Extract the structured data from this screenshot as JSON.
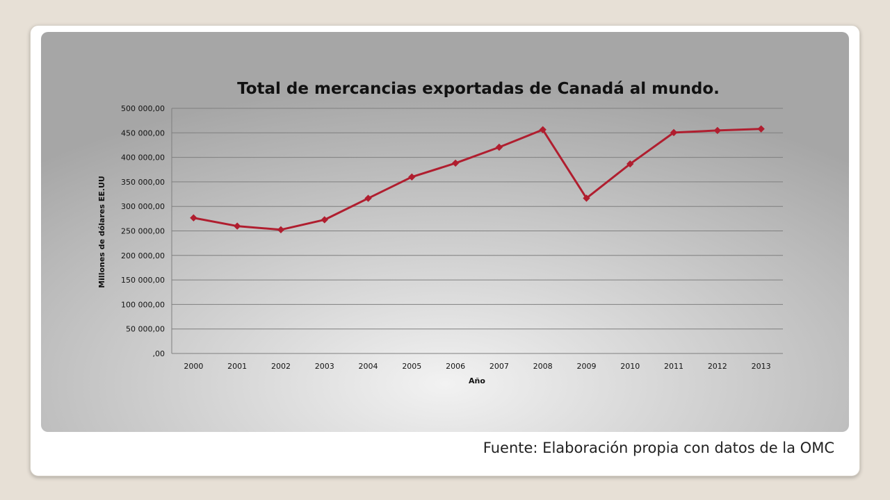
{
  "source_note": "Fuente: Elaboración propia con datos de la OMC",
  "colors": {
    "line": "#b01e2f",
    "marker": "#b01e2f",
    "gridline": "#7f7f7f",
    "background_center": "#f2f2f2",
    "background_edge": "#a6a6a6"
  },
  "chart_data": {
    "type": "line",
    "title": "Total de mercancias exportadas de Canadá al mundo.",
    "xlabel": "Año",
    "ylabel": "Millones  de dólares EE.UU",
    "categories": [
      "2000",
      "2001",
      "2002",
      "2003",
      "2004",
      "2005",
      "2006",
      "2007",
      "2008",
      "2009",
      "2010",
      "2011",
      "2012",
      "2013"
    ],
    "series": [
      {
        "values": [
          276600,
          259800,
          252400,
          272700,
          316500,
          360000,
          388200,
          420700,
          456400,
          316700,
          386600,
          450600,
          454800,
          458000
        ]
      }
    ],
    "ylim": [
      0,
      500000
    ],
    "yticks": [
      0,
      50000,
      100000,
      150000,
      200000,
      250000,
      300000,
      350000,
      400000,
      450000,
      500000
    ],
    "ytick_labels": [
      ",00",
      "50 000,00",
      "100 000,00",
      "150 000,00",
      "200 000,00",
      "250 000,00",
      "300 000,00",
      "350 000,00",
      "400 000,00",
      "450 000,00",
      "500 000,00"
    ],
    "grid": true,
    "legend": "none",
    "marker": "diamond"
  }
}
